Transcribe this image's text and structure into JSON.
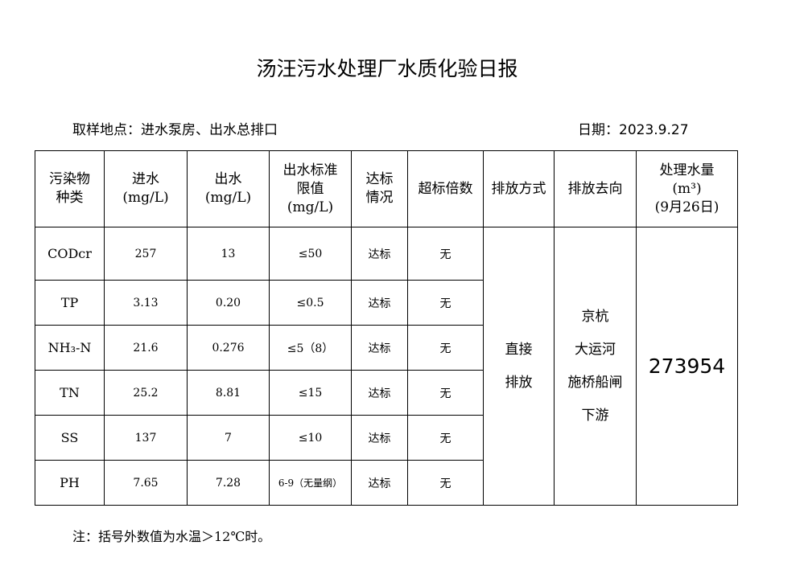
{
  "title": "汤汪污水处理厂水质化验日报",
  "sampling_location": "取样地点：进水泵房、出水总排口",
  "date": "日期：2023.9.27",
  "headers": {
    "pollutant": [
      "污染物",
      "种类"
    ],
    "inflow": [
      "进水",
      "(mg/L)"
    ],
    "outflow": [
      "出水",
      "(mg/L)"
    ],
    "limit": [
      "出水标准",
      "限值",
      "(mg/L)"
    ],
    "status": [
      "达标",
      "情况"
    ],
    "exceed": "超标倍数",
    "discharge_method": "排放方式",
    "discharge_dest": "排放去向",
    "volume": [
      "处理水量",
      "(m³)",
      "(9月26日)"
    ]
  },
  "rows": [
    {
      "name": "CODcr",
      "in": "257",
      "out": "13",
      "limit": "≤50",
      "status": "达标",
      "exceed": "无"
    },
    {
      "name": "TP",
      "in": "3.13",
      "out": "0.20",
      "limit": "≤0.5",
      "status": "达标",
      "exceed": "无"
    },
    {
      "name": "NH₃-N",
      "in": "21.6",
      "out": "0.276",
      "limit": "≤5（8）",
      "status": "达标",
      "exceed": "无"
    },
    {
      "name": "TN",
      "in": "25.2",
      "out": "8.81",
      "limit": "≤15",
      "status": "达标",
      "exceed": "无"
    },
    {
      "name": "SS",
      "in": "137",
      "out": "7",
      "limit": "≤10",
      "status": "达标",
      "exceed": "无"
    },
    {
      "name": "PH",
      "in": "7.65",
      "out": "7.28",
      "limit": "6-9（无量纲）",
      "status": "达标",
      "exceed": "无"
    }
  ],
  "discharge_method": [
    "直接",
    "排放"
  ],
  "discharge_dest": [
    "京杭",
    "大运河",
    "施桥船闸",
    "下游"
  ],
  "volume": "273954",
  "note": "注：括号外数值为水温＞12℃时。"
}
